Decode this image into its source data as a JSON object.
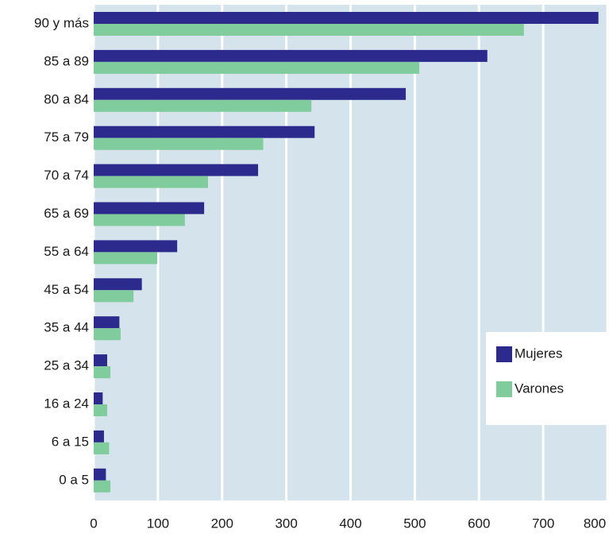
{
  "chart_data": {
    "type": "bar",
    "orientation": "horizontal",
    "categories": [
      "90 y más",
      "85 a 89",
      "80 a 84",
      "75 a 79",
      "70 a 74",
      "65 a 69",
      "55 a 64",
      "45 a 54",
      "35 a 44",
      "25 a 34",
      "16 a 24",
      "6 a 15",
      "0 a 5"
    ],
    "series": [
      {
        "name": "Mujeres",
        "color": "#2c2b8d",
        "values": [
          786,
          613,
          486,
          344,
          256,
          172,
          130,
          75,
          40,
          21,
          14,
          16,
          19
        ]
      },
      {
        "name": "Varones",
        "color": "#80cc9c",
        "values": [
          670,
          507,
          339,
          264,
          178,
          142,
          99,
          62,
          42,
          26,
          21,
          24,
          26
        ]
      }
    ],
    "xlim": [
      0,
      800
    ],
    "xticks": [
      0,
      100,
      200,
      300,
      400,
      500,
      600,
      700,
      800
    ],
    "grid": true,
    "legend": "lower right"
  }
}
